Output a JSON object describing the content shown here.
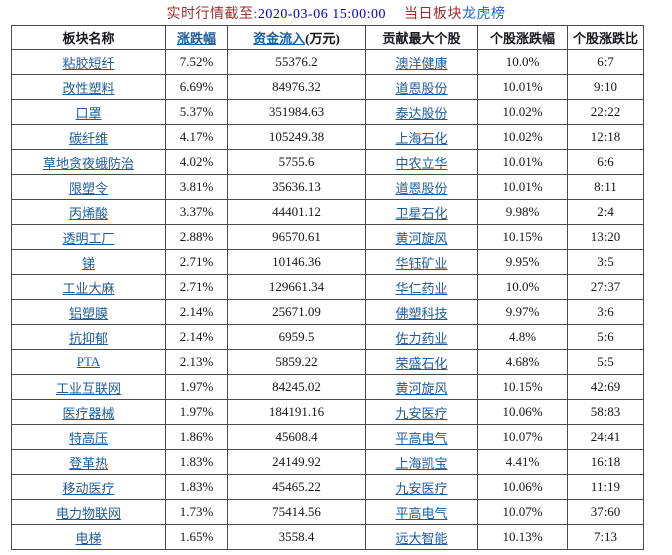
{
  "title": {
    "prefix": "实时行情截至:",
    "timestamp": "2020-03-06 15:00:00",
    "middle": "当日板块",
    "link": "龙虎榜"
  },
  "table": {
    "headers": [
      {
        "label": "板块名称",
        "style": "plain"
      },
      {
        "label": "涨跌幅",
        "style": "link"
      },
      {
        "label": "资金流入",
        "suffix": "(万元)",
        "style": "link"
      },
      {
        "label": "贡献最大个股",
        "style": "plain"
      },
      {
        "label": "个股涨跌幅",
        "style": "plain"
      },
      {
        "label": "个股涨跌比",
        "style": "plain"
      }
    ],
    "rows": [
      [
        "粘胶短纤",
        "7.52%",
        "55376.2",
        "澳洋健康",
        "10.0%",
        "6:7"
      ],
      [
        "改性塑料",
        "6.69%",
        "84976.32",
        "道恩股份",
        "10.01%",
        "9:10"
      ],
      [
        "口罩",
        "5.37%",
        "351984.63",
        "泰达股份",
        "10.02%",
        "22:22"
      ],
      [
        "碳纤维",
        "4.17%",
        "105249.38",
        "上海石化",
        "10.02%",
        "12:18"
      ],
      [
        "草地贪夜蛾防治",
        "4.02%",
        "5755.6",
        "中农立华",
        "10.01%",
        "6:6"
      ],
      [
        "限塑令",
        "3.81%",
        "35636.13",
        "道恩股份",
        "10.01%",
        "8:11"
      ],
      [
        "丙烯酸",
        "3.37%",
        "44401.12",
        "卫星石化",
        "9.98%",
        "2:4"
      ],
      [
        "透明工厂",
        "2.88%",
        "96570.61",
        "黄河旋风",
        "10.15%",
        "13:20"
      ],
      [
        "锑",
        "2.71%",
        "10146.36",
        "华钰矿业",
        "9.95%",
        "3:5"
      ],
      [
        "工业大麻",
        "2.71%",
        "129661.34",
        "华仁药业",
        "10.0%",
        "27:37"
      ],
      [
        "铝塑膜",
        "2.14%",
        "25671.09",
        "佛塑科技",
        "9.97%",
        "3:6"
      ],
      [
        "抗抑郁",
        "2.14%",
        "6959.5",
        "佐力药业",
        "4.8%",
        "5:6"
      ],
      [
        "PTA",
        "2.13%",
        "5859.22",
        "荣盛石化",
        "4.68%",
        "5:5"
      ],
      [
        "工业互联网",
        "1.97%",
        "84245.02",
        "黄河旋风",
        "10.15%",
        "42:69"
      ],
      [
        "医疗器械",
        "1.97%",
        "184191.16",
        "九安医疗",
        "10.06%",
        "58:83"
      ],
      [
        "特高压",
        "1.86%",
        "45608.4",
        "平高电气",
        "10.07%",
        "24:41"
      ],
      [
        "登革热",
        "1.83%",
        "24149.92",
        "上海凯宝",
        "4.41%",
        "16:18"
      ],
      [
        "移动医疗",
        "1.83%",
        "45465.22",
        "九安医疗",
        "10.06%",
        "11:19"
      ],
      [
        "电力物联网",
        "1.73%",
        "75414.56",
        "平高电气",
        "10.07%",
        "37:60"
      ],
      [
        "电梯",
        "1.65%",
        "3558.4",
        "远大智能",
        "10.13%",
        "7:13"
      ]
    ]
  },
  "colors": {
    "title_red": "#A02D2D",
    "time_blue": "#0000CC",
    "board_link_blue": "#1A66CC",
    "table_link_blue": "#1E5C9E",
    "number_text": "#15151D",
    "border": "#4A4A4A"
  }
}
